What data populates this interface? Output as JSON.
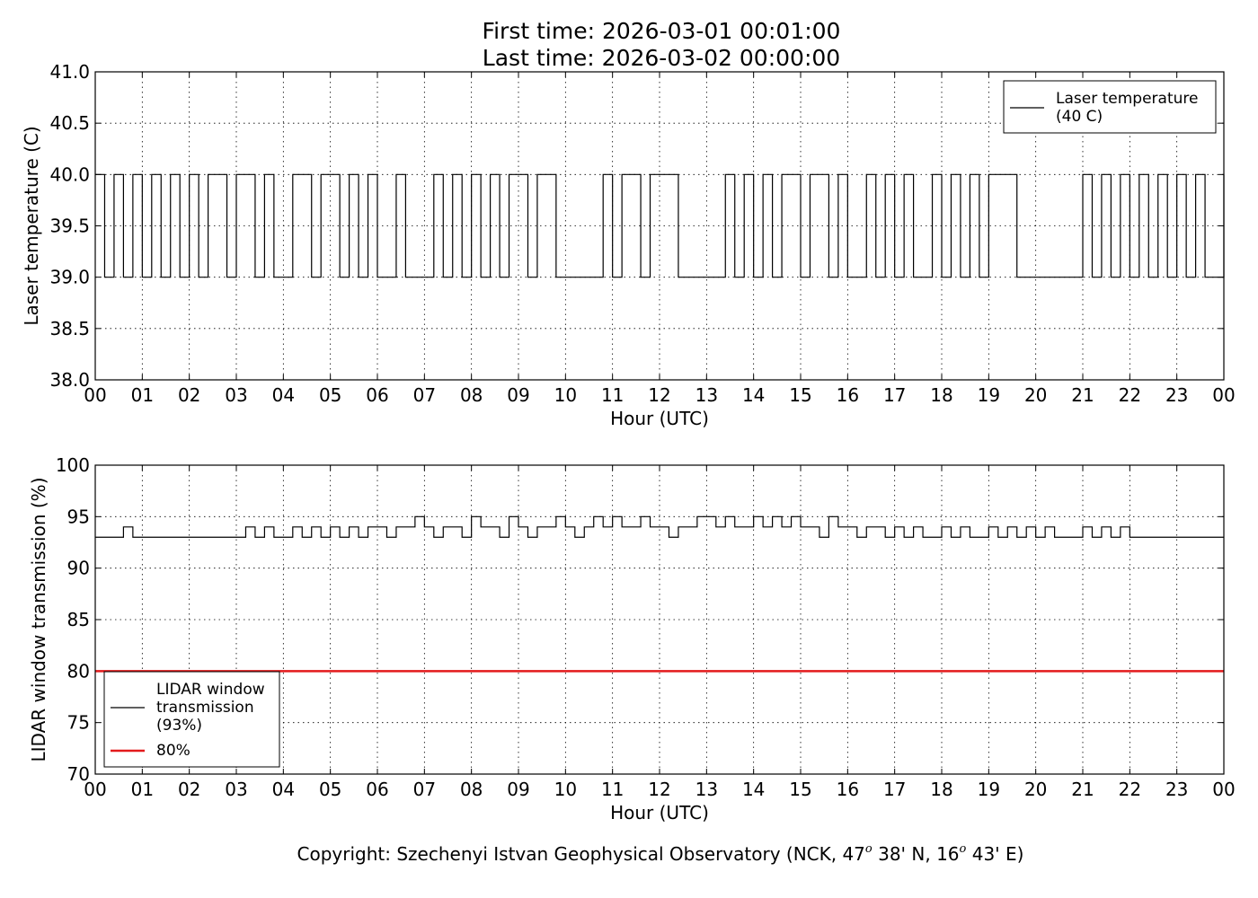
{
  "chart_data": [
    {
      "type": "line",
      "title": "First time: 2026-03-01 00:01:00",
      "subtitle": "Last time: 2026-03-02 00:00:00",
      "xlabel": "Hour (UTC)",
      "ylabel": "Laser temperature (C)",
      "grid": true,
      "step": true,
      "legend": "upper right",
      "xlim": [
        0,
        24
      ],
      "xticks": [
        {
          "value": 0,
          "label": "00"
        },
        {
          "value": 1,
          "label": "01"
        },
        {
          "value": 2,
          "label": "02"
        },
        {
          "value": 3,
          "label": "03"
        },
        {
          "value": 4,
          "label": "04"
        },
        {
          "value": 5,
          "label": "05"
        },
        {
          "value": 6,
          "label": "06"
        },
        {
          "value": 7,
          "label": "07"
        },
        {
          "value": 8,
          "label": "08"
        },
        {
          "value": 9,
          "label": "09"
        },
        {
          "value": 10,
          "label": "10"
        },
        {
          "value": 11,
          "label": "11"
        },
        {
          "value": 12,
          "label": "12"
        },
        {
          "value": 13,
          "label": "13"
        },
        {
          "value": 14,
          "label": "14"
        },
        {
          "value": 15,
          "label": "15"
        },
        {
          "value": 16,
          "label": "16"
        },
        {
          "value": 17,
          "label": "17"
        },
        {
          "value": 18,
          "label": "18"
        },
        {
          "value": 19,
          "label": "19"
        },
        {
          "value": 20,
          "label": "20"
        },
        {
          "value": 21,
          "label": "21"
        },
        {
          "value": 22,
          "label": "22"
        },
        {
          "value": 23,
          "label": "23"
        },
        {
          "value": 24,
          "label": "00"
        }
      ],
      "ylim": [
        38,
        41
      ],
      "yticks": [
        {
          "value": 38,
          "label": "38.0"
        },
        {
          "value": 38.5,
          "label": "38.5"
        },
        {
          "value": 39,
          "label": "39.0"
        },
        {
          "value": 39.5,
          "label": "39.5"
        },
        {
          "value": 40,
          "label": "40.0"
        },
        {
          "value": 40.5,
          "label": "40.5"
        },
        {
          "value": 41,
          "label": "41.0"
        }
      ],
      "series": [
        {
          "name": "Laser temperature\n(40 C)",
          "color": "#000000",
          "x": [
            0,
            0.2,
            0.4,
            0.6,
            0.8,
            1,
            1.2,
            1.4,
            1.6,
            1.8,
            2,
            2.2,
            2.4,
            2.6,
            2.8,
            3,
            3.2,
            3.4,
            3.6,
            3.8,
            4,
            4.2,
            4.4,
            4.6,
            4.8,
            5,
            5.2,
            5.4,
            5.6,
            5.8,
            6,
            6.2,
            6.4,
            6.6,
            6.8,
            7,
            7.2,
            7.4,
            7.6,
            7.8,
            8,
            8.2,
            8.4,
            8.6,
            8.8,
            9,
            9.2,
            9.4,
            9.6,
            9.8,
            10,
            10.2,
            10.4,
            10.6,
            10.8,
            11,
            11.2,
            11.4,
            11.6,
            11.8,
            12,
            12.2,
            12.4,
            12.6,
            12.8,
            13,
            13.2,
            13.4,
            13.6,
            13.8,
            14,
            14.2,
            14.4,
            14.6,
            14.8,
            15,
            15.2,
            15.4,
            15.6,
            15.8,
            16,
            16.2,
            16.4,
            16.6,
            16.8,
            17,
            17.2,
            17.4,
            17.6,
            17.8,
            18,
            18.2,
            18.4,
            18.6,
            18.8,
            19,
            19.2,
            19.4,
            19.6,
            19.8,
            20,
            20.2,
            20.4,
            20.6,
            20.8,
            21,
            21.2,
            21.4,
            21.6,
            21.8,
            22,
            22.2,
            22.4,
            22.6,
            22.8,
            23,
            23.2,
            23.4,
            23.6,
            23.8,
            24
          ],
          "values": [
            40,
            39,
            40,
            39,
            40,
            39,
            40,
            39,
            40,
            39,
            40,
            39,
            40,
            40,
            39,
            40,
            40,
            39,
            40,
            39,
            39,
            40,
            40,
            39,
            40,
            40,
            39,
            40,
            39,
            40,
            39,
            39,
            40,
            39,
            39,
            39,
            40,
            39,
            40,
            39,
            40,
            39,
            40,
            39,
            40,
            40,
            39,
            40,
            40,
            39,
            39,
            39,
            39,
            39,
            40,
            39,
            40,
            40,
            39,
            40,
            40,
            40,
            39,
            39,
            39,
            39,
            39,
            40,
            39,
            40,
            39,
            40,
            39,
            40,
            40,
            39,
            40,
            40,
            39,
            40,
            39,
            39,
            40,
            39,
            40,
            39,
            40,
            39,
            39,
            40,
            39,
            40,
            39,
            40,
            39,
            40,
            40,
            40,
            39,
            39,
            39,
            39,
            39,
            39,
            39,
            40,
            39,
            40,
            39,
            40,
            39,
            40,
            39,
            40,
            39,
            40,
            39,
            40,
            39,
            39,
            40
          ]
        }
      ]
    },
    {
      "type": "line",
      "xlabel": "Hour (UTC)",
      "ylabel": "LIDAR window transmission (%)",
      "grid": true,
      "step": true,
      "legend": "lower left",
      "xlim": [
        0,
        24
      ],
      "xticks": [
        {
          "value": 0,
          "label": "00"
        },
        {
          "value": 1,
          "label": "01"
        },
        {
          "value": 2,
          "label": "02"
        },
        {
          "value": 3,
          "label": "03"
        },
        {
          "value": 4,
          "label": "04"
        },
        {
          "value": 5,
          "label": "05"
        },
        {
          "value": 6,
          "label": "06"
        },
        {
          "value": 7,
          "label": "07"
        },
        {
          "value": 8,
          "label": "08"
        },
        {
          "value": 9,
          "label": "09"
        },
        {
          "value": 10,
          "label": "10"
        },
        {
          "value": 11,
          "label": "11"
        },
        {
          "value": 12,
          "label": "12"
        },
        {
          "value": 13,
          "label": "13"
        },
        {
          "value": 14,
          "label": "14"
        },
        {
          "value": 15,
          "label": "15"
        },
        {
          "value": 16,
          "label": "16"
        },
        {
          "value": 17,
          "label": "17"
        },
        {
          "value": 18,
          "label": "18"
        },
        {
          "value": 19,
          "label": "19"
        },
        {
          "value": 20,
          "label": "20"
        },
        {
          "value": 21,
          "label": "21"
        },
        {
          "value": 22,
          "label": "22"
        },
        {
          "value": 23,
          "label": "23"
        },
        {
          "value": 24,
          "label": "00"
        }
      ],
      "ylim": [
        70,
        100
      ],
      "yticks": [
        70,
        75,
        80,
        85,
        90,
        95,
        100
      ],
      "series": [
        {
          "name": "LIDAR window\ntransmission\n(93%)",
          "color": "#000000",
          "x": [
            0,
            0.2,
            0.4,
            0.6,
            0.8,
            1,
            1.2,
            1.4,
            1.6,
            1.8,
            2,
            2.2,
            2.4,
            2.6,
            2.8,
            3,
            3.2,
            3.4,
            3.6,
            3.8,
            4,
            4.2,
            4.4,
            4.6,
            4.8,
            5,
            5.2,
            5.4,
            5.6,
            5.8,
            6,
            6.2,
            6.4,
            6.6,
            6.8,
            7,
            7.2,
            7.4,
            7.6,
            7.8,
            8,
            8.2,
            8.4,
            8.6,
            8.8,
            9,
            9.2,
            9.4,
            9.6,
            9.8,
            10,
            10.2,
            10.4,
            10.6,
            10.8,
            11,
            11.2,
            11.4,
            11.6,
            11.8,
            12,
            12.2,
            12.4,
            12.6,
            12.8,
            13,
            13.2,
            13.4,
            13.6,
            13.8,
            14,
            14.2,
            14.4,
            14.6,
            14.8,
            15,
            15.2,
            15.4,
            15.6,
            15.8,
            16,
            16.2,
            16.4,
            16.6,
            16.8,
            17,
            17.2,
            17.4,
            17.6,
            17.8,
            18,
            18.2,
            18.4,
            18.6,
            18.8,
            19,
            19.2,
            19.4,
            19.6,
            19.8,
            20,
            20.2,
            20.4,
            20.6,
            20.8,
            21,
            21.2,
            21.4,
            21.6,
            21.8,
            22,
            22.2,
            22.4,
            22.6,
            22.8,
            23,
            23.2,
            23.4,
            23.6,
            23.8,
            24
          ],
          "values": [
            93,
            93,
            93,
            94,
            93,
            93,
            93,
            93,
            93,
            93,
            93,
            93,
            93,
            93,
            93,
            93,
            94,
            93,
            94,
            93,
            93,
            94,
            93,
            94,
            93,
            94,
            93,
            94,
            93,
            94,
            94,
            93,
            94,
            94,
            95,
            94,
            93,
            94,
            94,
            93,
            95,
            94,
            94,
            93,
            95,
            94,
            93,
            94,
            94,
            95,
            94,
            93,
            94,
            95,
            94,
            95,
            94,
            94,
            95,
            94,
            94,
            93,
            94,
            94,
            95,
            95,
            94,
            95,
            94,
            94,
            95,
            94,
            95,
            94,
            95,
            94,
            94,
            93,
            95,
            94,
            94,
            93,
            94,
            94,
            93,
            94,
            93,
            94,
            93,
            93,
            94,
            93,
            94,
            93,
            93,
            94,
            93,
            94,
            93,
            94,
            93,
            94,
            93,
            93,
            93,
            94,
            93,
            94,
            93,
            94,
            93,
            93,
            93,
            93,
            93,
            93,
            93,
            93,
            93,
            93,
            93
          ]
        },
        {
          "name": "80%",
          "color": "#e31a1c",
          "x": [
            0,
            24
          ],
          "values": [
            80,
            80
          ]
        }
      ]
    }
  ],
  "footer": [
    "Copyright: Szechenyi Istvan Geophysical Observatory (NCK, 47",
    "o",
    " 38' N, 16",
    "o",
    " 43' E)"
  ]
}
